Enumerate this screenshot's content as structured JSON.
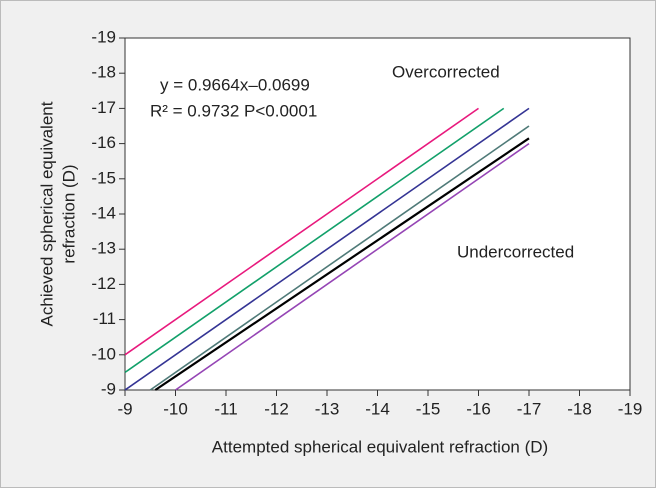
{
  "chart_data": {
    "type": "line",
    "xlabel": "Attempted spherical equivalent refraction (D)",
    "ylabel": [
      "Achieved spherical equivalent",
      "refraction (D)"
    ],
    "annotations": [
      "y = 0.9664x–0.0699",
      "R² = 0.9732 P<0.0001",
      "Overcorrected",
      "Undercorrected"
    ],
    "xlim": [
      -9,
      -19
    ],
    "ylim": [
      -9,
      -19
    ],
    "xticks": [
      -9,
      -10,
      -11,
      -12,
      -13,
      -14,
      -15,
      -16,
      -17,
      -18,
      -19
    ],
    "yticks": [
      -9,
      -10,
      -11,
      -12,
      -13,
      -14,
      -15,
      -16,
      -17,
      -18,
      -19
    ],
    "series": [
      {
        "color": "#e8197d",
        "x": [
          -9,
          -16
        ],
        "values": [
          -10,
          -17
        ]
      },
      {
        "color": "#12a06a",
        "x": [
          -9,
          -16.5
        ],
        "values": [
          -9.5,
          -17
        ]
      },
      {
        "color": "#343494",
        "x": [
          -9,
          -17
        ],
        "values": [
          -9,
          -17
        ]
      },
      {
        "color": "#4f7a78",
        "x": [
          -9.5,
          -17
        ],
        "values": [
          -9,
          -16.5
        ]
      },
      {
        "color": "#000000",
        "x": [
          -9.6,
          -17
        ],
        "values": [
          -9,
          -16.15
        ]
      },
      {
        "color": "#9545b5",
        "x": [
          -10,
          -17
        ],
        "values": [
          -9,
          -16
        ]
      }
    ]
  }
}
